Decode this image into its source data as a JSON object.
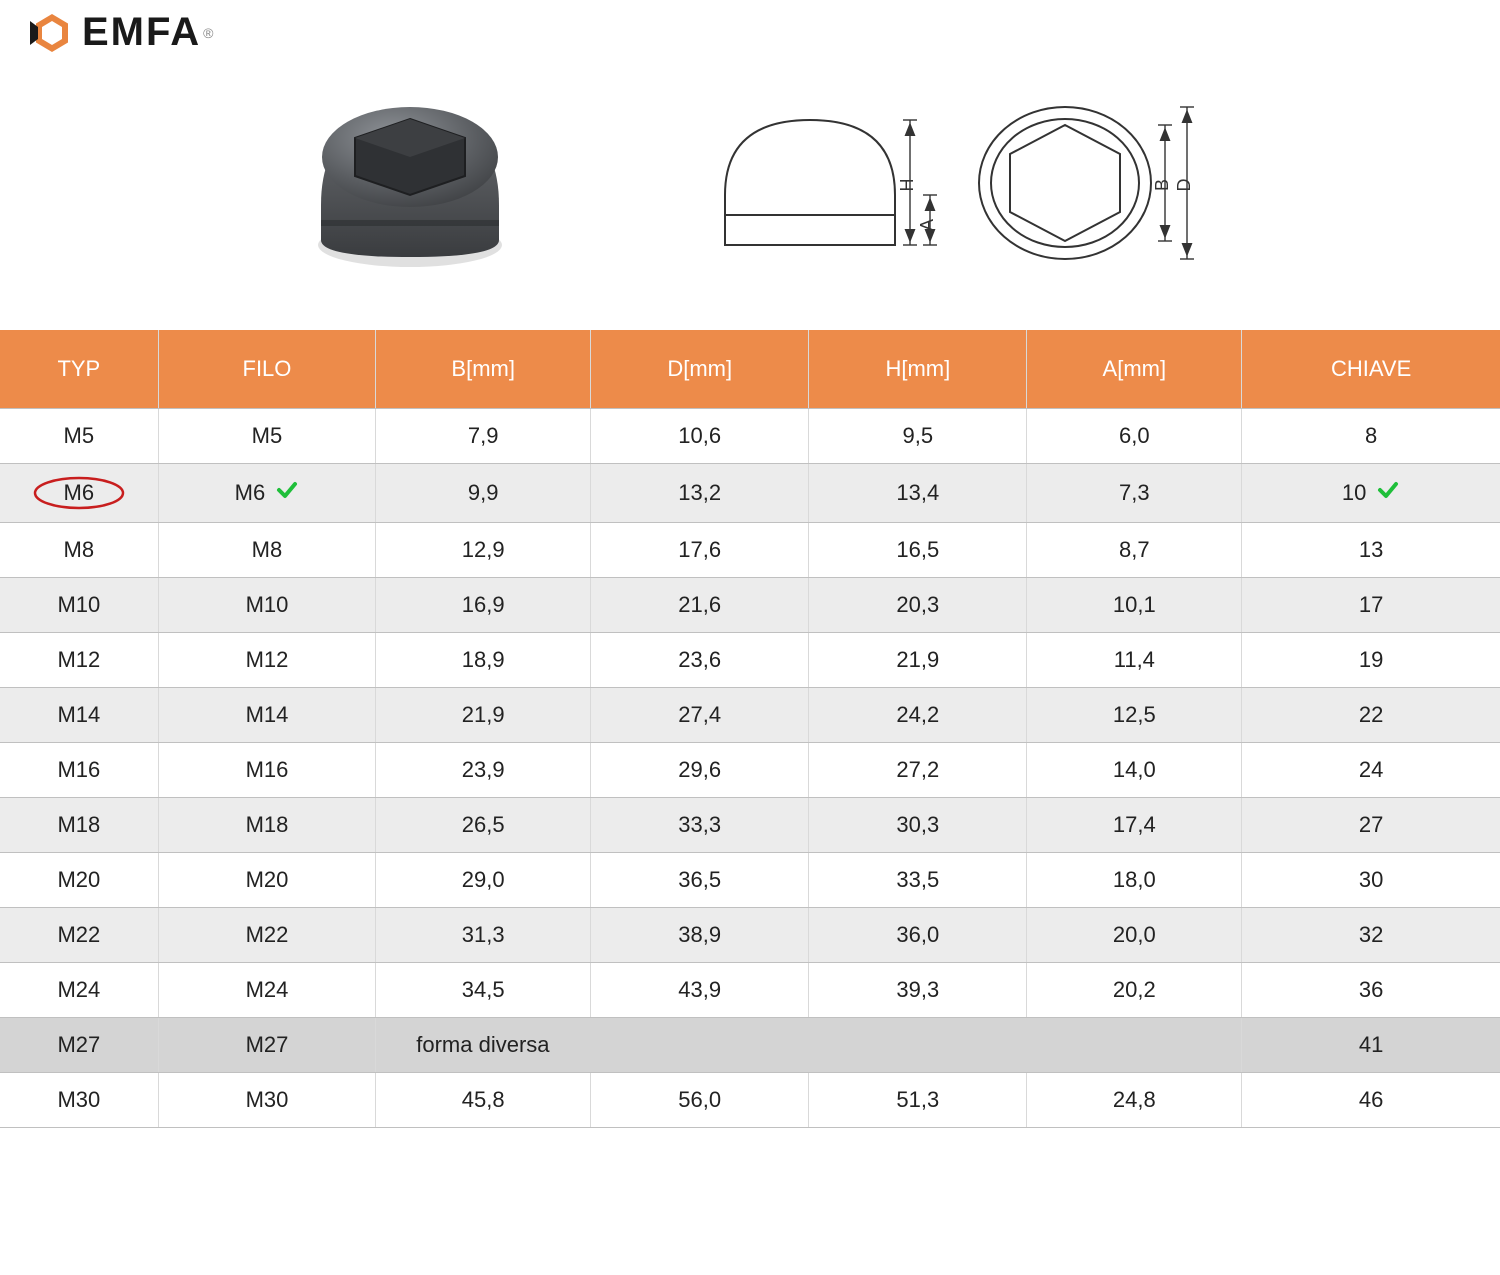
{
  "brand": {
    "name": "EMFA"
  },
  "colors": {
    "header_bg": "#ed8b4a",
    "header_text": "#ffffff",
    "row_odd_bg": "#ffffff",
    "row_even_bg": "#ececec",
    "row_diverse_bg": "#d4d4d4",
    "border": "#d9d9d9",
    "text": "#222222",
    "circle_stroke": "#c81e1e",
    "check_color": "#1fbf3a",
    "logo_accent": "#e9853f",
    "logo_dark": "#1a1a1a"
  },
  "diagram_labels": {
    "H": "H",
    "A": "A",
    "B": "B",
    "D": "D"
  },
  "table": {
    "columns": [
      "TYP",
      "FILO",
      "B[mm]",
      "D[mm]",
      "H[mm]",
      "A[mm]",
      "CHIAVE"
    ],
    "highlighted_row_index": 1,
    "diverse_row_index": 11,
    "diverse_text": "forma diversa",
    "rows": [
      {
        "typ": "M5",
        "filo": "M5",
        "b": "7,9",
        "d": "10,6",
        "h": "9,5",
        "a": "6,0",
        "chiave": "8"
      },
      {
        "typ": "M6",
        "filo": "M6",
        "b": "9,9",
        "d": "13,2",
        "h": "13,4",
        "a": "7,3",
        "chiave": "10"
      },
      {
        "typ": "M8",
        "filo": "M8",
        "b": "12,9",
        "d": "17,6",
        "h": "16,5",
        "a": "8,7",
        "chiave": "13"
      },
      {
        "typ": "M10",
        "filo": "M10",
        "b": "16,9",
        "d": "21,6",
        "h": "20,3",
        "a": "10,1",
        "chiave": "17"
      },
      {
        "typ": "M12",
        "filo": "M12",
        "b": "18,9",
        "d": "23,6",
        "h": "21,9",
        "a": "11,4",
        "chiave": "19"
      },
      {
        "typ": "M14",
        "filo": "M14",
        "b": "21,9",
        "d": "27,4",
        "h": "24,2",
        "a": "12,5",
        "chiave": "22"
      },
      {
        "typ": "M16",
        "filo": "M16",
        "b": "23,9",
        "d": "29,6",
        "h": "27,2",
        "a": "14,0",
        "chiave": "24"
      },
      {
        "typ": "M18",
        "filo": "M18",
        "b": "26,5",
        "d": "33,3",
        "h": "30,3",
        "a": "17,4",
        "chiave": "27"
      },
      {
        "typ": "M20",
        "filo": "M20",
        "b": "29,0",
        "d": "36,5",
        "h": "33,5",
        "a": "18,0",
        "chiave": "30"
      },
      {
        "typ": "M22",
        "filo": "M22",
        "b": "31,3",
        "d": "38,9",
        "h": "36,0",
        "a": "20,0",
        "chiave": "32"
      },
      {
        "typ": "M24",
        "filo": "M24",
        "b": "34,5",
        "d": "43,9",
        "h": "39,3",
        "a": "20,2",
        "chiave": "36"
      },
      {
        "typ": "M27",
        "filo": "M27",
        "b": "",
        "d": "",
        "h": "",
        "a": "",
        "chiave": "41"
      },
      {
        "typ": "M30",
        "filo": "M30",
        "b": "45,8",
        "d": "56,0",
        "h": "51,3",
        "a": "24,8",
        "chiave": "46"
      }
    ]
  }
}
